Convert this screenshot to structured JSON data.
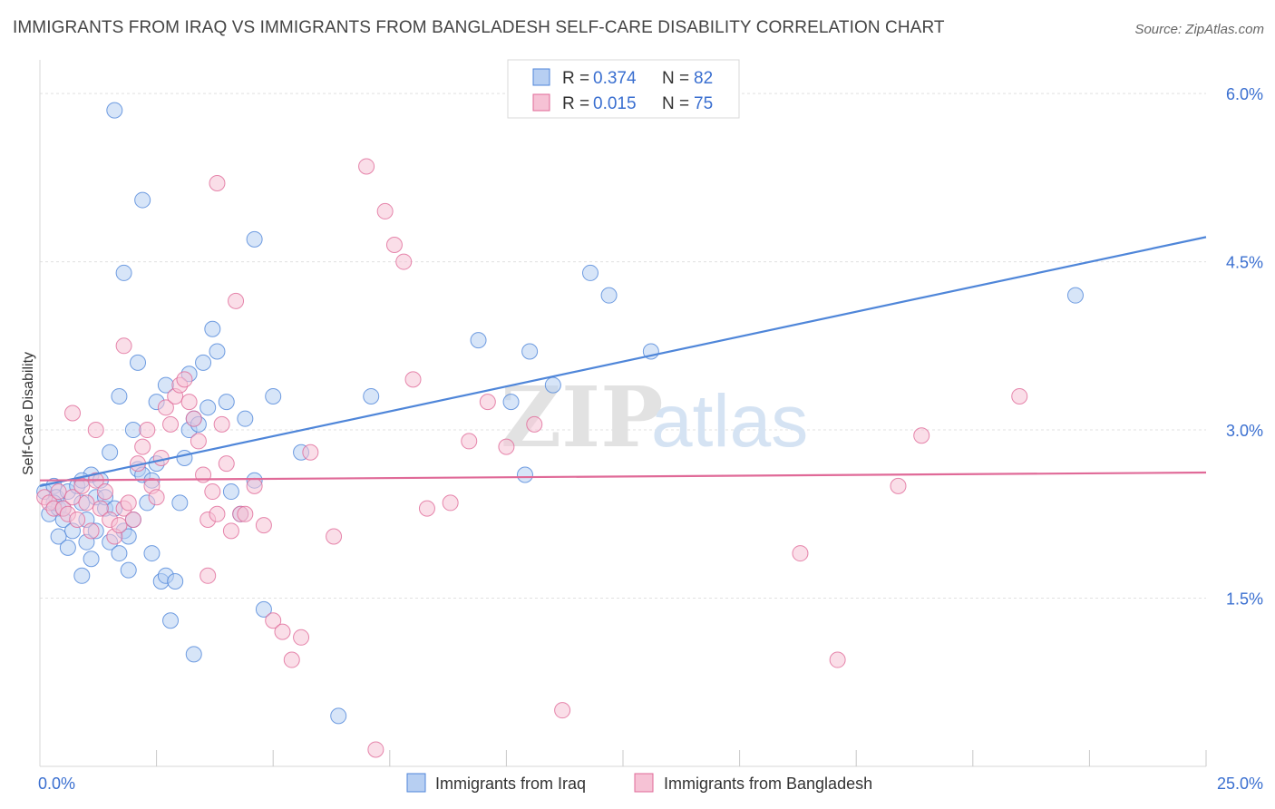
{
  "title": "IMMIGRANTS FROM IRAQ VS IMMIGRANTS FROM BANGLADESH SELF-CARE DISABILITY CORRELATION CHART",
  "source": "Source: ZipAtlas.com",
  "watermark": {
    "part1": "ZIP",
    "part2": "atlas"
  },
  "chart_data": {
    "type": "scatter",
    "title": "IMMIGRANTS FROM IRAQ VS IMMIGRANTS FROM BANGLADESH SELF-CARE DISABILITY CORRELATION CHART",
    "xlabel": "",
    "ylabel": "Self-Care Disability",
    "xlim": [
      0,
      25
    ],
    "ylim": [
      0,
      6.3
    ],
    "x_tick_labels": [
      {
        "value": 0,
        "label": "0.0%"
      },
      {
        "value": 25,
        "label": "25.0%"
      }
    ],
    "y_ticks": [
      {
        "value": 1.5,
        "label": "1.5%"
      },
      {
        "value": 3.0,
        "label": "3.0%"
      },
      {
        "value": 4.5,
        "label": "4.5%"
      },
      {
        "value": 6.0,
        "label": "6.0%"
      }
    ],
    "legend": {
      "position": "top-center",
      "rows": [
        {
          "r_label": "R =",
          "r_value": "0.374",
          "n_label": "N =",
          "n_value": "82"
        },
        {
          "r_label": "R =",
          "r_value": "0.015",
          "n_label": "N =",
          "n_value": "75"
        }
      ]
    },
    "series": [
      {
        "name": "Immigrants from Iraq",
        "color": "#4f86d9",
        "fill": "#b7cff2",
        "trend": {
          "x": [
            0,
            25
          ],
          "y": [
            2.5,
            4.72
          ]
        },
        "points": [
          [
            0.1,
            2.45
          ],
          [
            0.2,
            2.25
          ],
          [
            0.3,
            2.5
          ],
          [
            0.35,
            2.4
          ],
          [
            0.4,
            2.3
          ],
          [
            0.5,
            2.2
          ],
          [
            0.6,
            2.45
          ],
          [
            0.7,
            2.1
          ],
          [
            0.8,
            2.5
          ],
          [
            0.9,
            2.35
          ],
          [
            1.0,
            2.2
          ],
          [
            1.1,
            2.6
          ],
          [
            1.2,
            2.4
          ],
          [
            1.3,
            2.55
          ],
          [
            1.4,
            2.3
          ],
          [
            0.4,
            2.05
          ],
          [
            0.6,
            1.95
          ],
          [
            0.9,
            1.7
          ],
          [
            1.0,
            2.0
          ],
          [
            1.2,
            2.1
          ],
          [
            1.4,
            2.4
          ],
          [
            1.5,
            2.0
          ],
          [
            1.6,
            2.3
          ],
          [
            1.7,
            1.9
          ],
          [
            1.8,
            2.1
          ],
          [
            1.9,
            2.05
          ],
          [
            2.0,
            2.2
          ],
          [
            2.1,
            2.65
          ],
          [
            2.2,
            2.6
          ],
          [
            2.3,
            2.35
          ],
          [
            2.4,
            2.55
          ],
          [
            2.5,
            2.7
          ],
          [
            2.6,
            1.65
          ],
          [
            2.7,
            1.7
          ],
          [
            2.8,
            1.3
          ],
          [
            2.9,
            1.65
          ],
          [
            3.0,
            2.35
          ],
          [
            3.1,
            2.75
          ],
          [
            3.2,
            3.0
          ],
          [
            3.3,
            3.1
          ],
          [
            3.4,
            3.05
          ],
          [
            3.5,
            3.6
          ],
          [
            3.6,
            3.2
          ],
          [
            3.7,
            3.9
          ],
          [
            3.8,
            3.7
          ],
          [
            4.0,
            3.25
          ],
          [
            4.1,
            2.45
          ],
          [
            4.3,
            2.25
          ],
          [
            4.4,
            3.1
          ],
          [
            4.6,
            2.55
          ],
          [
            4.8,
            1.4
          ],
          [
            5.0,
            3.3
          ],
          [
            1.5,
            2.8
          ],
          [
            1.7,
            3.3
          ],
          [
            1.8,
            4.4
          ],
          [
            1.6,
            5.85
          ],
          [
            2.2,
            5.05
          ],
          [
            2.1,
            3.6
          ],
          [
            2.0,
            3.0
          ],
          [
            2.5,
            3.25
          ],
          [
            2.7,
            3.4
          ],
          [
            3.2,
            3.5
          ],
          [
            4.6,
            4.7
          ],
          [
            3.3,
            1.0
          ],
          [
            5.6,
            2.8
          ],
          [
            6.4,
            0.45
          ],
          [
            7.1,
            3.3
          ],
          [
            9.4,
            3.8
          ],
          [
            10.1,
            3.25
          ],
          [
            10.4,
            2.6
          ],
          [
            10.5,
            3.7
          ],
          [
            11.0,
            3.4
          ],
          [
            11.8,
            4.4
          ],
          [
            12.2,
            4.2
          ],
          [
            13.1,
            3.7
          ],
          [
            22.2,
            4.2
          ],
          [
            1.1,
            1.85
          ],
          [
            1.9,
            1.75
          ],
          [
            0.3,
            2.35
          ],
          [
            0.5,
            2.3
          ],
          [
            2.4,
            1.9
          ],
          [
            0.9,
            2.55
          ]
        ]
      },
      {
        "name": "Immigrants from Bangladesh",
        "color": "#e06a98",
        "fill": "#f6c2d5",
        "trend": {
          "x": [
            0,
            25
          ],
          "y": [
            2.55,
            2.62
          ]
        },
        "points": [
          [
            0.1,
            2.4
          ],
          [
            0.2,
            2.35
          ],
          [
            0.3,
            2.3
          ],
          [
            0.4,
            2.45
          ],
          [
            0.5,
            2.3
          ],
          [
            0.6,
            2.25
          ],
          [
            0.7,
            2.4
          ],
          [
            0.8,
            2.2
          ],
          [
            0.9,
            2.5
          ],
          [
            1.0,
            2.35
          ],
          [
            1.1,
            2.1
          ],
          [
            1.2,
            2.55
          ],
          [
            1.3,
            2.3
          ],
          [
            1.4,
            2.45
          ],
          [
            1.5,
            2.2
          ],
          [
            1.6,
            2.05
          ],
          [
            1.7,
            2.15
          ],
          [
            1.8,
            2.3
          ],
          [
            1.9,
            2.35
          ],
          [
            2.0,
            2.2
          ],
          [
            2.1,
            2.7
          ],
          [
            2.2,
            2.85
          ],
          [
            2.3,
            3.0
          ],
          [
            2.4,
            2.5
          ],
          [
            2.5,
            2.4
          ],
          [
            2.6,
            2.75
          ],
          [
            2.7,
            3.2
          ],
          [
            2.8,
            3.05
          ],
          [
            2.9,
            3.3
          ],
          [
            3.0,
            3.4
          ],
          [
            3.1,
            3.45
          ],
          [
            3.2,
            3.25
          ],
          [
            3.3,
            3.1
          ],
          [
            3.4,
            2.9
          ],
          [
            3.5,
            2.6
          ],
          [
            3.6,
            2.2
          ],
          [
            3.7,
            2.45
          ],
          [
            3.8,
            2.25
          ],
          [
            3.9,
            3.05
          ],
          [
            4.0,
            2.7
          ],
          [
            4.1,
            2.1
          ],
          [
            4.2,
            4.15
          ],
          [
            4.3,
            2.25
          ],
          [
            4.4,
            2.25
          ],
          [
            4.6,
            2.5
          ],
          [
            4.8,
            2.15
          ],
          [
            5.0,
            1.3
          ],
          [
            5.2,
            1.2
          ],
          [
            5.4,
            0.95
          ],
          [
            5.6,
            1.15
          ],
          [
            1.8,
            3.75
          ],
          [
            0.7,
            3.15
          ],
          [
            1.2,
            3.0
          ],
          [
            3.8,
            5.2
          ],
          [
            7.0,
            5.35
          ],
          [
            7.4,
            4.95
          ],
          [
            7.6,
            4.65
          ],
          [
            7.8,
            4.5
          ],
          [
            8.0,
            3.45
          ],
          [
            8.3,
            2.3
          ],
          [
            8.8,
            2.35
          ],
          [
            9.2,
            2.9
          ],
          [
            9.6,
            3.25
          ],
          [
            10.0,
            2.85
          ],
          [
            10.6,
            3.05
          ],
          [
            11.2,
            0.5
          ],
          [
            5.8,
            2.8
          ],
          [
            6.3,
            2.05
          ],
          [
            7.2,
            0.15
          ],
          [
            16.3,
            1.9
          ],
          [
            17.1,
            0.95
          ],
          [
            18.4,
            2.5
          ],
          [
            18.9,
            2.95
          ],
          [
            21.0,
            3.3
          ],
          [
            3.6,
            1.7
          ]
        ]
      }
    ]
  }
}
